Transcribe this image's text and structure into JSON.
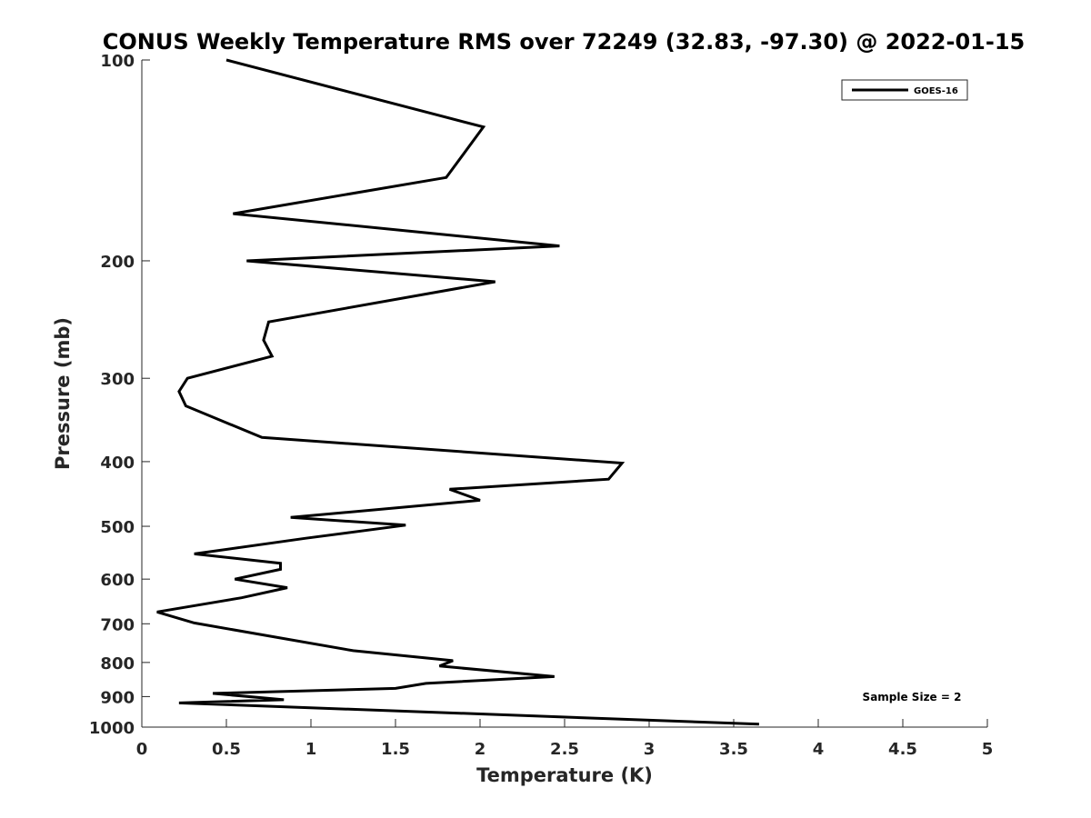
{
  "chart_data": {
    "type": "line",
    "title": "CONUS Weekly Temperature RMS over 72249 (32.83, -97.30) @ 2022-01-15",
    "xlabel": "Temperature (K)",
    "ylabel": "Pressure (mb)",
    "xlim": [
      0,
      5
    ],
    "ylim": [
      100,
      1000
    ],
    "yscale": "log",
    "y_reversed": true,
    "xticks": [
      0,
      0.5,
      1,
      1.5,
      2,
      2.5,
      3,
      3.5,
      4,
      4.5,
      5
    ],
    "xtick_labels": [
      "0",
      "0.5",
      "1",
      "1.5",
      "2",
      "2.5",
      "3",
      "3.5",
      "4",
      "4.5",
      "5"
    ],
    "yticks": [
      100,
      200,
      300,
      400,
      500,
      600,
      700,
      800,
      900,
      1000
    ],
    "ytick_labels": [
      "100",
      "200",
      "300",
      "400",
      "500",
      "600",
      "700",
      "800",
      "900",
      "1000"
    ],
    "grid": false,
    "legend_position": "top-right",
    "annotation": "Sample Size = 2",
    "series": [
      {
        "name": "GOES-16",
        "color": "#000000",
        "x": [
          0.5,
          2.02,
          1.8,
          0.54,
          2.47,
          0.62,
          2.09,
          0.75,
          0.72,
          0.77,
          0.27,
          0.22,
          0.26,
          0.71,
          2.84,
          2.76,
          1.82,
          2.0,
          0.88,
          1.56,
          0.97,
          0.31,
          0.82,
          0.82,
          0.55,
          0.86,
          0.59,
          0.09,
          0.31,
          1.25,
          1.84,
          1.76,
          2.44,
          1.68,
          1.5,
          0.42,
          0.84,
          0.22,
          3.65
        ],
        "y": [
          100,
          126,
          150,
          170,
          190,
          200,
          215,
          247,
          263,
          278,
          300,
          314,
          330,
          368,
          402,
          425,
          440,
          457,
          485,
          498,
          521,
          550,
          568,
          580,
          600,
          618,
          640,
          672,
          698,
          768,
          795,
          810,
          840,
          860,
          875,
          890,
          910,
          920,
          990
        ]
      }
    ]
  }
}
